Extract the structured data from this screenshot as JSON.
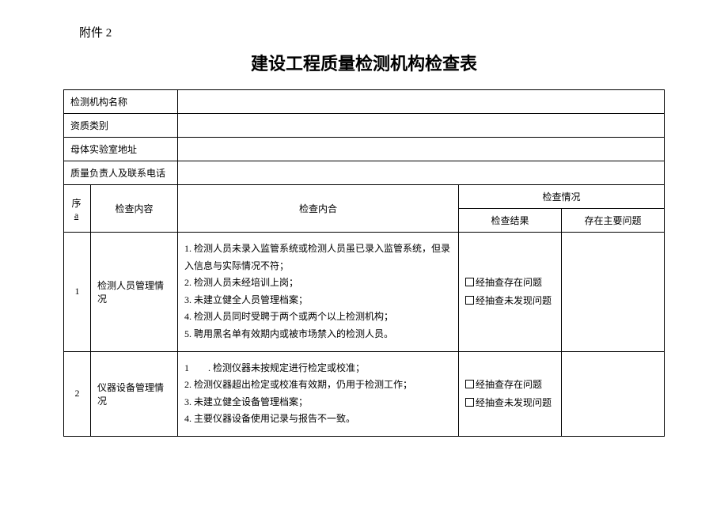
{
  "attachment": "附件 2",
  "title": "建设工程质量检测机构检查表",
  "fields": {
    "org_name_label": "检测机构名称",
    "qual_label": "资质类别",
    "lab_addr_label": "母体实验室地址",
    "contact_label": "质量负责人及联系电话"
  },
  "columns": {
    "seq_prefix": "序",
    "seq_suffix": "a",
    "category": "检查内容",
    "content": "检查内合",
    "situation": "检查情况",
    "result": "检查结果",
    "issue": "存在主要问题"
  },
  "checkbox_opt1": "经抽查存在问题",
  "checkbox_opt2": "经抽查未发现问题",
  "rows": [
    {
      "seq": "1",
      "category": "检测人员管理情况",
      "content": "1. 检测人员未录入监管系统或检测人员虽已录入监管系统，但录入信息与实际情况不符；\n2. 检测人员未经培训上岗；\n3. 未建立健全人员管理档案；\n4. 检测人员同时受聘于两个或两个以上检测机构；\n5. 聘用黑名单有效期内或被市场禁入的检测人员。"
    },
    {
      "seq": "2",
      "category": "仪器设备管理情况",
      "content": "1　　. 检测仪器未按规定进行检定或校准；\n2. 检测仪器超出检定或校准有效期，仍用于检测工作；\n3. 未建立健全设备管理档案；\n4. 主要仪器设备使用记录与报告不一致。"
    }
  ]
}
